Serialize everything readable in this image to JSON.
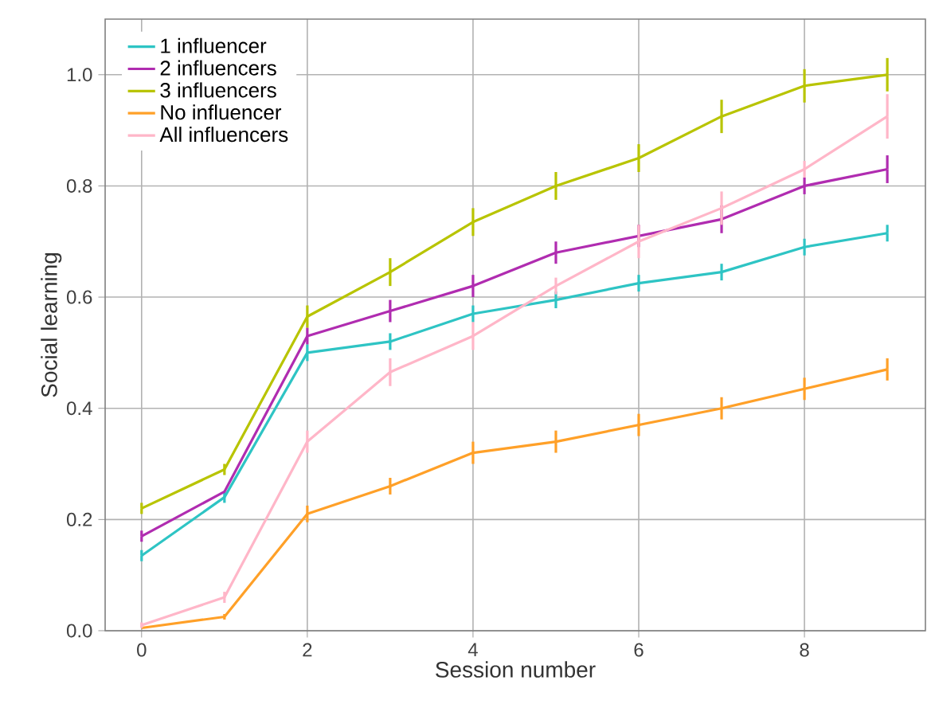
{
  "chart_data": {
    "type": "line",
    "xlabel": "Session number",
    "ylabel": "Social learning",
    "x": [
      0,
      1,
      2,
      3,
      4,
      5,
      6,
      7,
      8,
      9
    ],
    "xlim": [
      -0.44,
      9.46
    ],
    "xticks": [
      0,
      2,
      4,
      6,
      8
    ],
    "ylim": [
      0,
      1.1
    ],
    "yticks": [
      {
        "value": 0,
        "label": "0.0"
      },
      {
        "value": 0.2,
        "label": "0.2"
      },
      {
        "value": 0.4,
        "label": "0.4"
      },
      {
        "value": 0.6,
        "label": "0.6"
      },
      {
        "value": 0.8,
        "label": "0.8"
      },
      {
        "value": 1.0,
        "label": "1.0"
      }
    ],
    "grid": true,
    "legend": "top left",
    "marker": "none",
    "line_style": "solid",
    "series": [
      {
        "name": "1 influencer",
        "color": "#2ec4c4",
        "values": [
          0.135,
          0.24,
          0.5,
          0.52,
          0.57,
          0.595,
          0.625,
          0.645,
          0.69,
          0.715
        ],
        "errors": [
          0.01,
          0.01,
          0.015,
          0.015,
          0.015,
          0.015,
          0.015,
          0.015,
          0.015,
          0.015
        ]
      },
      {
        "name": "2 influencers",
        "color": "#b02cb0",
        "values": [
          0.17,
          0.25,
          0.53,
          0.575,
          0.62,
          0.68,
          0.71,
          0.74,
          0.8,
          0.83
        ],
        "errors": [
          0.01,
          null,
          0.015,
          0.02,
          0.02,
          0.02,
          0.02,
          0.025,
          0.015,
          0.025
        ]
      },
      {
        "name": "3 influencers",
        "color": "#b8c400",
        "values": [
          0.22,
          0.29,
          0.565,
          0.645,
          0.735,
          0.8,
          0.85,
          0.925,
          0.98,
          1.0
        ],
        "errors": [
          0.01,
          0.01,
          0.02,
          0.025,
          0.025,
          0.025,
          0.025,
          0.03,
          0.03,
          0.03
        ]
      },
      {
        "name": "No influencer",
        "color": "#ffa028",
        "values": [
          0.005,
          0.025,
          0.21,
          0.26,
          0.32,
          0.34,
          0.37,
          0.4,
          0.435,
          0.47
        ],
        "errors": [
          null,
          0.005,
          0.015,
          0.015,
          0.02,
          0.02,
          0.02,
          0.02,
          0.02,
          0.02
        ]
      },
      {
        "name": "All influencers",
        "color": "#ffb6c8",
        "values": [
          0.01,
          0.06,
          0.34,
          0.465,
          0.53,
          0.62,
          0.7,
          0.76,
          0.83,
          0.925
        ],
        "errors": [
          0.005,
          0.01,
          0.02,
          0.025,
          0.025,
          0.015,
          0.03,
          0.03,
          0.015,
          0.04
        ]
      }
    ]
  }
}
